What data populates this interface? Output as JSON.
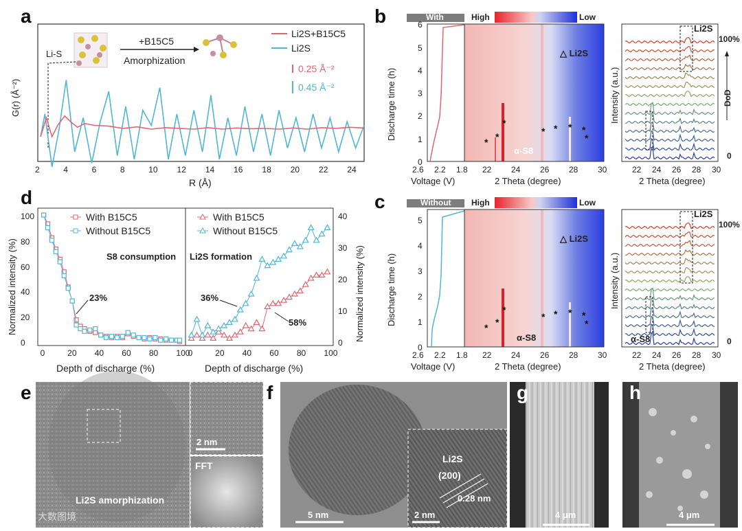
{
  "panel_letters": [
    "a",
    "b",
    "c",
    "d",
    "e",
    "f",
    "g",
    "h"
  ],
  "panel_a": {
    "ylabel": "G(r) (Å⁻²)",
    "xlabel": "R (Å)",
    "xticks": [
      "2",
      "4",
      "6",
      "8",
      "10",
      "12",
      "14",
      "16",
      "18",
      "20",
      "22",
      "24"
    ],
    "legend": [
      {
        "name": "Li2S+B15C5",
        "color": "#e06670"
      },
      {
        "name": "Li2S",
        "color": "#4fb6d8"
      }
    ],
    "scale_pink": "0.25 Å⁻²",
    "scale_blue": "0.45 Å⁻²",
    "inset_left": "Li-S",
    "inset_arrow_top": "+B15C5",
    "inset_arrow_bottom": "Amorphization"
  },
  "panel_b": {
    "tag": "With",
    "cbar_high": "High",
    "cbar_low": "Low",
    "ylabel": "Discharge time (h)",
    "yticks": [
      "0",
      "1",
      "2",
      "3",
      "4",
      "5",
      "6"
    ],
    "volt_xticks": [
      "2.6",
      "2.2",
      "1.8"
    ],
    "volt_xlabel": "Voltage (V)",
    "theta_xticks": [
      "22",
      "24",
      "26",
      "28",
      "30"
    ],
    "theta_xlabel": "2 Theta (degree)",
    "li2s_label": "△ Li2S",
    "s8_label": "α-S8",
    "xrd_ylabel": "Intensity (a.u.)",
    "xrd_xticks": [
      "22",
      "24",
      "26",
      "28",
      "30"
    ],
    "xrd_xlabel": "2 Theta (degree)",
    "xrd_li2s": "Li2S",
    "dod_top": "100%",
    "dod_mid": "DoD",
    "dod_bottom": "0"
  },
  "panel_c": {
    "tag": "Without",
    "cbar_high": "High",
    "cbar_low": "Low",
    "ylabel": "Discharge time (h)",
    "yticks": [
      "0",
      "1",
      "2",
      "3",
      "4",
      "5"
    ],
    "volt_xticks": [
      "2.6",
      "2.2",
      "1.8"
    ],
    "volt_xlabel": "Voltage (V)",
    "theta_xticks": [
      "22",
      "24",
      "26",
      "28",
      "30"
    ],
    "theta_xlabel": "2 Theta (degree)",
    "li2s_label": "△ Li2S",
    "s8_label": "α-S8",
    "xrd_ylabel": "Intensity (a.u.)",
    "xrd_xticks": [
      "22",
      "24",
      "26",
      "28",
      "30"
    ],
    "xrd_xlabel": "2 Theta (degree)",
    "xrd_li2s": "Li2S",
    "xrd_s8": "α-S8",
    "dod_top": "100%",
    "dod_bottom": "0"
  },
  "panel_d": {
    "left_ylabel": "Normalized intensity (%)",
    "right_ylabel": "Normalized intensity (%)",
    "left_yticks": [
      "0",
      "20",
      "40",
      "60",
      "80",
      "100"
    ],
    "right_yticks": [
      "0",
      "10",
      "20",
      "30",
      "40"
    ],
    "left_xticks": [
      "0",
      "20",
      "40",
      "60",
      "80",
      "100"
    ],
    "right_xticks": [
      "0",
      "20",
      "40",
      "60",
      "80",
      "100"
    ],
    "xlabel": "Depth of discharge (%)",
    "legend_left": [
      "With B15C5",
      "Without B15C5"
    ],
    "legend_right": [
      "With B15C5",
      "Without B15C5"
    ],
    "s8_title": "S8 consumption",
    "li2s_title": "Li2S formation",
    "ann_23": "23%",
    "ann_36": "36%",
    "ann_58": "58%"
  },
  "panel_e": {
    "label": "Li2S amorphization",
    "inset_scale": "2 nm",
    "fft_label": "FFT",
    "watermark": "大数图境"
  },
  "panel_f": {
    "scale_main": "5 nm",
    "scale_inset": "2 nm",
    "li2s": "Li2S",
    "plane": "(200)",
    "spacing": "0.28 nm"
  },
  "panel_g": {
    "scale": "4 μm"
  },
  "panel_h": {
    "scale": "4 μm"
  },
  "chart_data": [
    {
      "id": "a",
      "type": "line",
      "title": "",
      "xlabel": "R (Å)",
      "ylabel": "G(r) (Å⁻²)",
      "xlim": [
        2,
        25
      ],
      "series": [
        {
          "name": "Li2S+B15C5",
          "x": [
            2.2,
            2.6,
            3.0,
            3.4,
            3.9,
            4.3,
            4.8,
            5.3,
            6.0,
            7.0,
            8.0,
            9.0,
            10.0,
            11.0,
            12.0,
            13.0,
            14.0,
            15.0,
            16.0,
            17.0,
            18.0,
            19.0,
            20.0,
            21.0,
            22.0,
            23.0,
            24.0,
            25.0
          ],
          "y": [
            0.0,
            0.5,
            0.0,
            0.3,
            0.55,
            0.4,
            0.25,
            0.35,
            0.3,
            0.28,
            0.22,
            0.26,
            0.2,
            0.24,
            0.22,
            0.2,
            0.24,
            0.2,
            0.23,
            0.21,
            0.22,
            0.2,
            0.23,
            0.2,
            0.24,
            0.22,
            0.25,
            0.23
          ]
        },
        {
          "name": "Li2S",
          "x": [
            2.2,
            2.5,
            3.0,
            3.5,
            4.0,
            4.6,
            5.2,
            5.8,
            6.4,
            7.0,
            7.6,
            8.2,
            8.8,
            9.4,
            10.0,
            10.6,
            11.2,
            11.8,
            12.4,
            13.0,
            13.6,
            14.2,
            14.8,
            15.4,
            16.0,
            16.6,
            17.2,
            17.8,
            18.4,
            19.0,
            19.6,
            20.2,
            20.8,
            21.4,
            22.0,
            22.6,
            23.2,
            23.8,
            24.4,
            25.0
          ],
          "y": [
            0.0,
            0.6,
            -0.8,
            0.2,
            1.5,
            -0.4,
            0.5,
            -0.7,
            0.4,
            1.2,
            -0.5,
            0.8,
            -0.6,
            0.7,
            0.3,
            1.3,
            -0.6,
            0.6,
            -0.5,
            0.7,
            -0.4,
            1.1,
            -0.6,
            0.5,
            -0.5,
            0.8,
            -0.4,
            0.6,
            -0.5,
            0.7,
            -0.3,
            0.5,
            -0.4,
            0.6,
            -0.3,
            0.5,
            -0.4,
            0.4,
            -0.3,
            0.3
          ]
        }
      ]
    },
    {
      "id": "d-left",
      "type": "line",
      "title": "S8 consumption",
      "xlabel": "Depth of discharge (%)",
      "ylabel": "Normalized intensity (%)",
      "xlim": [
        0,
        100
      ],
      "ylim": [
        0,
        100
      ],
      "series": [
        {
          "name": "With B15C5",
          "x": [
            0,
            3,
            6,
            9,
            12,
            15,
            18,
            21,
            24,
            27,
            30,
            34,
            38,
            42,
            46,
            50,
            54,
            58,
            62,
            66,
            70,
            74,
            78,
            82,
            86,
            90,
            94,
            98,
            100
          ],
          "y": [
            100,
            93,
            82,
            73,
            65,
            55,
            43,
            32,
            17,
            12,
            10,
            8,
            7,
            5,
            4,
            3,
            4,
            3,
            6,
            4,
            3,
            2,
            3,
            2,
            2,
            1,
            1,
            1,
            0
          ]
        },
        {
          "name": "Without B15C5",
          "x": [
            0,
            3,
            6,
            9,
            12,
            15,
            18,
            21,
            24,
            27,
            30,
            34,
            38,
            42,
            46,
            50,
            54,
            58,
            62,
            66,
            70,
            74,
            78,
            82,
            86,
            90,
            94,
            98,
            100
          ],
          "y": [
            100,
            90,
            80,
            71,
            63,
            52,
            42,
            32,
            13,
            10,
            8,
            9,
            10,
            5,
            3,
            4,
            3,
            4,
            7,
            5,
            3,
            3,
            2,
            3,
            1,
            2,
            1,
            1,
            1
          ]
        }
      ]
    },
    {
      "id": "d-right",
      "type": "line",
      "title": "Li2S formation",
      "xlabel": "Depth of discharge (%)",
      "ylabel": "Normalized intensity (%)",
      "xlim": [
        0,
        100
      ],
      "ylim": [
        0,
        40
      ],
      "series": [
        {
          "name": "With B15C5",
          "x": [
            0,
            4,
            8,
            12,
            16,
            20,
            24,
            28,
            32,
            36,
            40,
            44,
            48,
            52,
            56,
            60,
            64,
            68,
            72,
            76,
            80,
            84,
            88,
            92,
            96,
            100
          ],
          "y": [
            1,
            2,
            1,
            2,
            1,
            3,
            2,
            1,
            2,
            3,
            5,
            4,
            6,
            4,
            11,
            12,
            12,
            13,
            14,
            15,
            16,
            18,
            20,
            21,
            21,
            22
          ]
        },
        {
          "name": "Without B15C5",
          "x": [
            0,
            4,
            8,
            12,
            16,
            20,
            24,
            28,
            32,
            36,
            40,
            44,
            48,
            52,
            56,
            60,
            64,
            68,
            72,
            76,
            80,
            84,
            88,
            92,
            96,
            100
          ],
          "y": [
            2,
            7,
            2,
            5,
            3,
            4,
            5,
            6,
            7,
            10,
            12,
            15,
            20,
            26,
            24,
            25,
            26,
            27,
            29,
            31,
            30,
            32,
            36,
            32,
            34,
            36
          ]
        }
      ]
    }
  ]
}
